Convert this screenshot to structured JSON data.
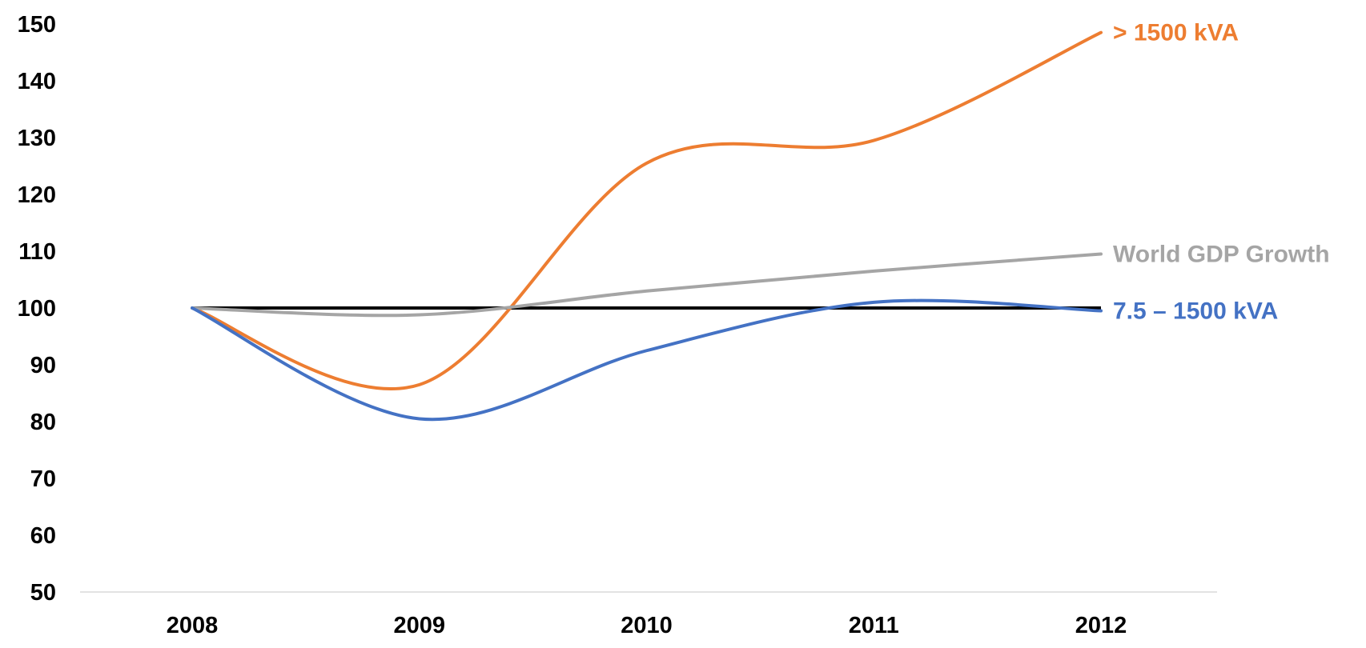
{
  "chart_data": {
    "type": "line",
    "title": "",
    "xlabel": "",
    "ylabel": "",
    "x": [
      2008,
      2009,
      2010,
      2011,
      2012
    ],
    "ylim": [
      50,
      150
    ],
    "yticks": [
      50,
      60,
      70,
      80,
      90,
      100,
      110,
      120,
      130,
      140,
      150
    ],
    "grid": false,
    "legend": "inline labels at line ends",
    "reference_line": {
      "value": 100,
      "color": "#000000"
    },
    "series": [
      {
        "name": "> 1500 kVA",
        "color": "#ED7D31",
        "values": [
          100,
          86.5,
          125.5,
          129.5,
          148.5
        ]
      },
      {
        "name": "World GDP Growth",
        "color": "#A5A5A5",
        "values": [
          100,
          98.8,
          103,
          106.5,
          109.5
        ]
      },
      {
        "name": "7.5 – 1500 kVA",
        "color": "#4472C4",
        "values": [
          100,
          80.5,
          92.5,
          101,
          99.5
        ]
      }
    ]
  }
}
